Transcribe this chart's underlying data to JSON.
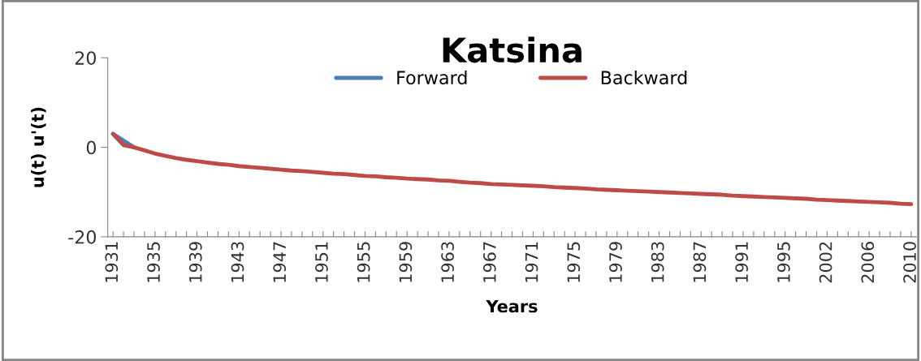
{
  "chart_data": {
    "type": "line",
    "title": "Katsina",
    "xlabel": "Years",
    "ylabel": "u(t) u'(t)",
    "categories": [
      "1931",
      null,
      null,
      null,
      "1935",
      null,
      null,
      null,
      "1939",
      null,
      null,
      null,
      "1943",
      null,
      null,
      null,
      "1947",
      null,
      null,
      null,
      "1951",
      null,
      null,
      null,
      "1955",
      null,
      null,
      null,
      "1959",
      null,
      null,
      null,
      "1963",
      null,
      null,
      null,
      "1967",
      null,
      null,
      null,
      "1971",
      null,
      null,
      null,
      "1975",
      null,
      null,
      null,
      "1979",
      null,
      null,
      null,
      "1983",
      null,
      null,
      null,
      "1987",
      null,
      null,
      null,
      "1991",
      null,
      null,
      null,
      "1995",
      null,
      null,
      null,
      "2002",
      null,
      null,
      null,
      "2006",
      null,
      null,
      null,
      "2010"
    ],
    "series": [
      {
        "name": "Forward",
        "color": "#4a7ebb",
        "values": [
          3,
          1.5,
          0,
          null,
          null,
          null,
          null,
          null,
          null,
          null,
          null,
          null,
          null,
          null,
          null,
          null,
          null,
          null,
          null,
          null,
          null,
          null,
          null,
          null,
          null,
          null,
          null,
          null,
          null,
          null,
          null,
          null,
          null,
          null,
          null,
          null,
          null,
          null,
          null,
          null,
          null,
          null,
          null,
          null,
          null,
          null,
          null,
          null,
          null,
          null,
          null,
          null,
          null,
          null,
          null,
          null,
          null,
          null,
          null,
          null,
          null,
          null,
          null,
          null,
          null,
          null,
          null,
          null,
          null,
          null,
          null,
          null,
          null,
          null,
          null,
          null,
          null
        ]
      },
      {
        "name": "Backward",
        "color": "#be4b48",
        "values": [
          3,
          0.5,
          0,
          -0.7,
          -1.4,
          -1.9,
          -2.4,
          -2.8,
          -3.1,
          -3.4,
          -3.7,
          -3.9,
          -4.2,
          -4.4,
          -4.6,
          -4.8,
          -5.0,
          -5.2,
          -5.3,
          -5.5,
          -5.7,
          -5.9,
          -6.0,
          -6.2,
          -6.4,
          -6.5,
          -6.7,
          -6.8,
          -7.0,
          -7.1,
          -7.2,
          -7.4,
          -7.5,
          -7.7,
          -7.9,
          -8.0,
          -8.2,
          -8.3,
          -8.4,
          -8.5,
          -8.6,
          -8.7,
          -8.9,
          -9.0,
          -9.1,
          -9.2,
          -9.4,
          -9.5,
          -9.6,
          -9.7,
          -9.8,
          -9.9,
          -10.0,
          -10.1,
          -10.2,
          -10.3,
          -10.4,
          -10.5,
          -10.6,
          -10.8,
          -10.9,
          -11.0,
          -11.1,
          -11.2,
          -11.3,
          -11.4,
          -11.5,
          -11.7,
          -11.8,
          -11.9,
          -12.0,
          -12.1,
          -12.2,
          -12.3,
          -12.4,
          -12.6,
          -12.7
        ]
      }
    ],
    "ylim": [
      -20,
      20
    ],
    "yticks": [
      -20,
      0,
      20
    ],
    "grid": false,
    "legend": "top",
    "marker": "none",
    "line_style": "solid"
  }
}
